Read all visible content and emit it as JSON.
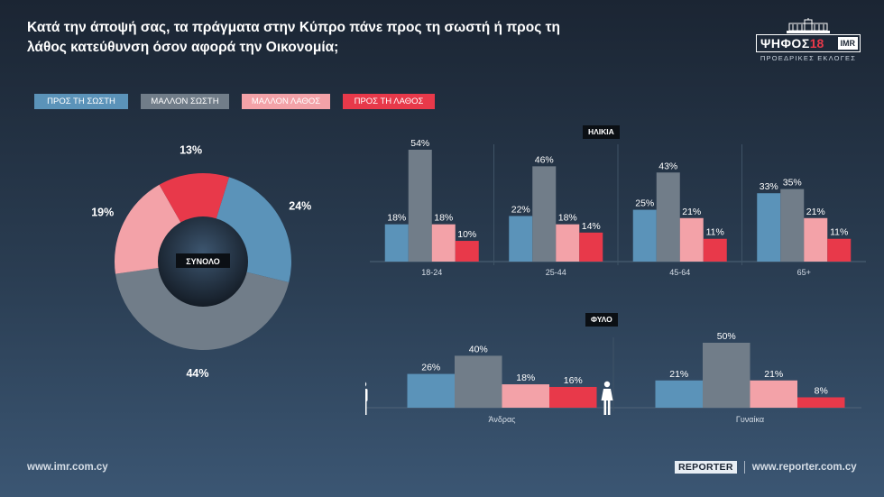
{
  "title": "Κατά την άποψή σας, τα πράγματα στην Κύπρο πάνε προς τη σωστή ή προς τη λάθος κατεύθυνση όσον αφορά την Οικονομία;",
  "brand": {
    "name": "ΨΗΦΟΣ",
    "year": "18",
    "partner": "IMR",
    "subtitle": "ΠΡΟΕΔΡΙΚΕΣ ΕΚΛΟΓΕΣ"
  },
  "colors": {
    "right": "#5b93b9",
    "rather_right": "#717d89",
    "rather_wrong": "#f3a2a8",
    "wrong": "#e8394a"
  },
  "legend": [
    {
      "label": "ΠΡΟΣ ΤΗ ΣΩΣΤΗ",
      "color": "#5b93b9"
    },
    {
      "label": "ΜΑΛΛΟΝ ΣΩΣΤΗ",
      "color": "#717d89"
    },
    {
      "label": "ΜΑΛΛΟΝ ΛΑΘΟΣ",
      "color": "#f3a2a8"
    },
    {
      "label": "ΠΡΟΣ ΤΗ ΛΑΘΟΣ",
      "color": "#e8394a"
    }
  ],
  "chart_data": [
    {
      "type": "pie",
      "center_label": "ΣΥΝΟΛΟ",
      "series": [
        {
          "name": "ΠΡΟΣ ΤΗ ΣΩΣΤΗ",
          "value": 24,
          "label": "24%"
        },
        {
          "name": "ΜΑΛΛΟΝ ΣΩΣΤΗ",
          "value": 44,
          "label": "44%"
        },
        {
          "name": "ΜΑΛΛΟΝ ΛΑΘΟΣ",
          "value": 19,
          "label": "19%"
        },
        {
          "name": "ΠΡΟΣ ΤΗ ΛΑΘΟΣ",
          "value": 13,
          "label": "13%"
        }
      ]
    },
    {
      "type": "bar",
      "title": "ΗΛΙΚΙΑ",
      "categories": [
        "18-24",
        "25-44",
        "45-64",
        "65+"
      ],
      "series": [
        {
          "name": "ΠΡΟΣ ΤΗ ΣΩΣΤΗ",
          "values": [
            18,
            22,
            25,
            33
          ]
        },
        {
          "name": "ΜΑΛΛΟΝ ΣΩΣΤΗ",
          "values": [
            54,
            46,
            43,
            35
          ]
        },
        {
          "name": "ΜΑΛΛΟΝ ΛΑΘΟΣ",
          "values": [
            18,
            18,
            21,
            21
          ]
        },
        {
          "name": "ΠΡΟΣ ΤΗ ΛΑΘΟΣ",
          "values": [
            10,
            14,
            11,
            11
          ]
        }
      ]
    },
    {
      "type": "bar",
      "title": "ΦΥΛΟ",
      "categories": [
        "Άνδρας",
        "Γυναίκα"
      ],
      "category_icons": [
        "male-icon",
        "female-icon"
      ],
      "series": [
        {
          "name": "ΠΡΟΣ ΤΗ ΣΩΣΤΗ",
          "values": [
            26,
            21
          ]
        },
        {
          "name": "ΜΑΛΛΟΝ ΣΩΣΤΗ",
          "values": [
            40,
            50
          ]
        },
        {
          "name": "ΜΑΛΛΟΝ ΛΑΘΟΣ",
          "values": [
            18,
            21
          ]
        },
        {
          "name": "ΠΡΟΣ ΤΗ ΛΑΘΟΣ",
          "values": [
            16,
            8
          ]
        }
      ]
    }
  ],
  "footer": {
    "left_url": "www.imr.com.cy",
    "logo": "REPORTER",
    "right_url": "www.reporter.com.cy"
  }
}
